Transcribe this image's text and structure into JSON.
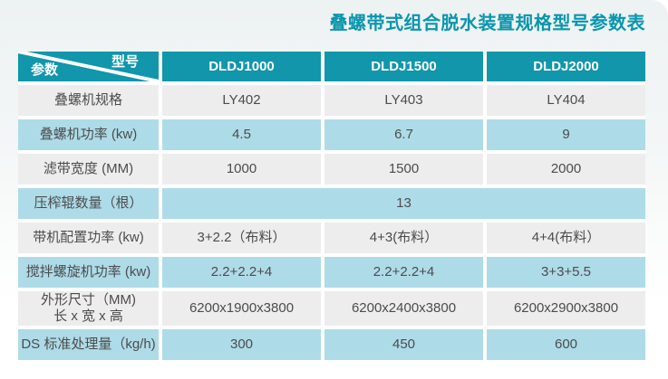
{
  "page": {
    "title": "叠螺带式组合脱水装置规格型号参数表"
  },
  "colors": {
    "header_teal": "#1196ab",
    "title_teal": "#0a96ae",
    "row_blue": "#aedbe8",
    "row_gray": "#ededed",
    "cell_text": "#4c4c4c"
  },
  "table": {
    "corner": {
      "param_label": "参数",
      "model_label": "型号"
    },
    "columns": [
      "DLDJ1000",
      "DLDJ1500",
      "DLDJ2000"
    ],
    "rows": [
      {
        "label": "叠螺机规格",
        "tone": "gray",
        "values": [
          "LY402",
          "LY403",
          "LY404"
        ]
      },
      {
        "label": "叠螺机功率 (kw)",
        "tone": "blue",
        "values": [
          "4.5",
          "6.7",
          "9"
        ]
      },
      {
        "label": "滤带宽度 (MM)",
        "tone": "gray",
        "values": [
          "1000",
          "1500",
          "2000"
        ]
      },
      {
        "label": "压榨辊数量（根）",
        "tone": "blue",
        "merged": true,
        "values": [
          "13"
        ]
      },
      {
        "label": "带机配置功率 (kw)",
        "tone": "gray",
        "values": [
          "3+2.2（布料）",
          "4+3(布料）",
          "4+4(布料）"
        ]
      },
      {
        "label": "搅拌螺旋机功率 (kw)",
        "tone": "blue",
        "values": [
          "2.2+2.2+4",
          "2.2+2.2+4",
          "3+3+5.5"
        ]
      },
      {
        "label": "外形尺寸（MM)",
        "label2": "长 x 宽 x 高",
        "tone": "gray",
        "values": [
          "6200x1900x3800",
          "6200x2400x3800",
          "6200x2900x3800"
        ]
      },
      {
        "label": "DS 标准处理量（kg/h)",
        "tone": "blue",
        "values": [
          "300",
          "450",
          "600"
        ]
      }
    ]
  }
}
